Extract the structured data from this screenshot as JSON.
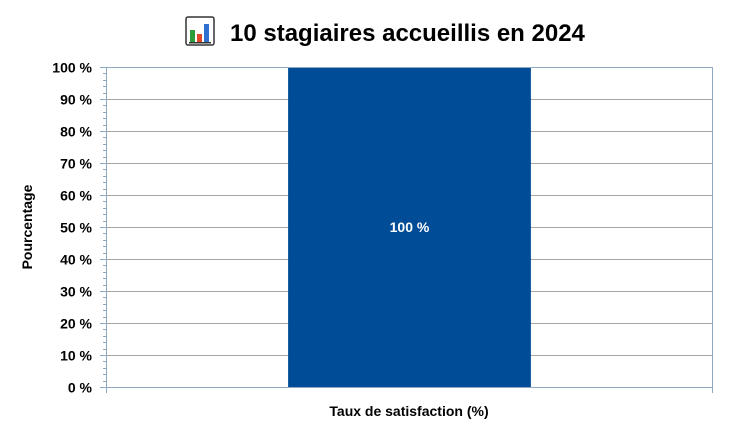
{
  "header": {
    "icon": "bar-chart-emoji-icon",
    "title": "10 stagiaires accueillis en 2024"
  },
  "chart_data": {
    "type": "bar",
    "title": "10 stagiaires accueillis en 2024",
    "categories": [
      ""
    ],
    "values": [
      100
    ],
    "data_labels": [
      "100 %"
    ],
    "xlabel": "Taux de satisfaction (%)",
    "ylabel": "Pourcentage",
    "ylim": [
      0,
      100
    ],
    "ytick_step": 10,
    "ytick_suffix": " %",
    "grid": true,
    "legend": "none",
    "bar_color": "#004C97",
    "grid_color": "#A6A6A6",
    "axis_color": "#8EA9C1"
  }
}
